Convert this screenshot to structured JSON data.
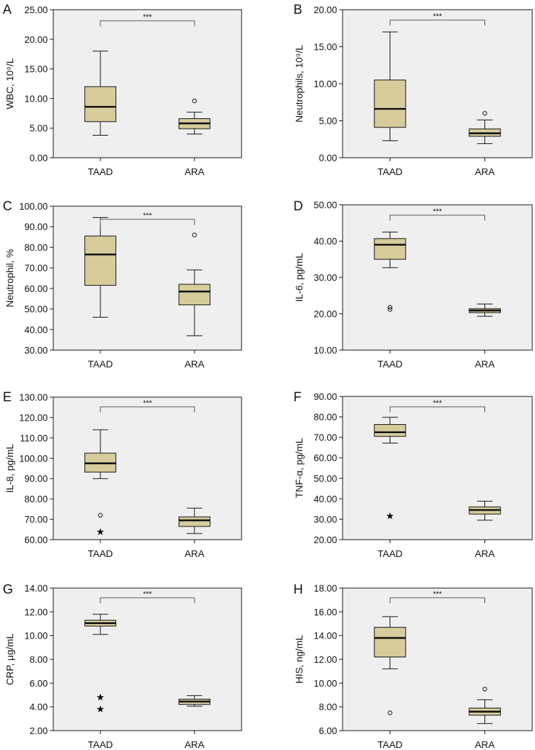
{
  "figure": {
    "box_fill": "#d6cc9c",
    "plot_bg": "#efefef",
    "ink": "#111111"
  },
  "chart_data": [
    {
      "panel": "A",
      "type": "box",
      "ylabel": "WBC, 10⁹/L",
      "ylim": [
        0,
        25
      ],
      "ticks": [
        0,
        5,
        10,
        15,
        20,
        25
      ],
      "tick_labels": [
        "0.00",
        "5.00",
        "10.00",
        "15.00",
        "20.00",
        "25.00"
      ],
      "categories": [
        "TAAD",
        "ARA"
      ],
      "significance": "***",
      "boxes": [
        {
          "category": "TAAD",
          "whisker_low": 3.8,
          "q1": 6.1,
          "median": 8.6,
          "q3": 12.0,
          "whisker_high": 18.0,
          "outliers": [],
          "extremes": []
        },
        {
          "category": "ARA",
          "whisker_low": 4.0,
          "q1": 4.9,
          "median": 5.8,
          "q3": 6.6,
          "whisker_high": 7.7,
          "outliers": [
            9.6
          ],
          "extremes": []
        }
      ]
    },
    {
      "panel": "B",
      "type": "box",
      "ylabel": "Neutrophils, 10⁹/L",
      "ylim": [
        0,
        20
      ],
      "ticks": [
        0,
        5,
        10,
        15,
        20
      ],
      "tick_labels": [
        "0.00",
        "5.00",
        "10.00",
        "15.00",
        "20.00"
      ],
      "categories": [
        "TAAD",
        "ARA"
      ],
      "significance": "***",
      "boxes": [
        {
          "category": "TAAD",
          "whisker_low": 2.3,
          "q1": 4.1,
          "median": 6.6,
          "q3": 10.5,
          "whisker_high": 17.0,
          "outliers": [],
          "extremes": []
        },
        {
          "category": "ARA",
          "whisker_low": 1.9,
          "q1": 2.9,
          "median": 3.3,
          "q3": 3.9,
          "whisker_high": 5.1,
          "outliers": [
            6.0
          ],
          "extremes": []
        }
      ]
    },
    {
      "panel": "C",
      "type": "box",
      "ylabel": "Neutrophil, %",
      "ylim": [
        30,
        100
      ],
      "ticks": [
        30,
        40,
        50,
        60,
        70,
        80,
        90,
        100
      ],
      "tick_labels": [
        "30.00",
        "40.00",
        "50.00",
        "60.00",
        "70.00",
        "80.00",
        "90.00",
        "100.00"
      ],
      "categories": [
        "TAAD",
        "ARA"
      ],
      "significance": "***",
      "boxes": [
        {
          "category": "TAAD",
          "whisker_low": 46.0,
          "q1": 61.5,
          "median": 76.5,
          "q3": 85.5,
          "whisker_high": 94.5,
          "outliers": [],
          "extremes": []
        },
        {
          "category": "ARA",
          "whisker_low": 37.0,
          "q1": 52.0,
          "median": 58.5,
          "q3": 62.0,
          "whisker_high": 69.0,
          "outliers": [
            86.0
          ],
          "extremes": []
        }
      ]
    },
    {
      "panel": "D",
      "type": "box",
      "ylabel": "IL-6, pg/mL",
      "ylim": [
        10,
        50
      ],
      "ticks": [
        10,
        20,
        30,
        40,
        50
      ],
      "tick_labels": [
        "10.00",
        "20.00",
        "30.00",
        "40.00",
        "50.00"
      ],
      "categories": [
        "TAAD",
        "ARA"
      ],
      "significance": "***",
      "boxes": [
        {
          "category": "TAAD",
          "whisker_low": 32.7,
          "q1": 35.0,
          "median": 39.0,
          "q3": 40.7,
          "whisker_high": 42.5,
          "outliers": [
            21.2,
            21.8
          ],
          "extremes": []
        },
        {
          "category": "ARA",
          "whisker_low": 19.3,
          "q1": 20.3,
          "median": 20.9,
          "q3": 21.4,
          "whisker_high": 22.7,
          "outliers": [],
          "extremes": []
        }
      ]
    },
    {
      "panel": "E",
      "type": "box",
      "ylabel": "IL-8, pg/mL",
      "ylim": [
        60,
        130
      ],
      "ticks": [
        60,
        70,
        80,
        90,
        100,
        110,
        120,
        130
      ],
      "tick_labels": [
        "60.00",
        "70.00",
        "80.00",
        "90.00",
        "100.00",
        "110.00",
        "120.00",
        "130.00"
      ],
      "categories": [
        "TAAD",
        "ARA"
      ],
      "significance": "***",
      "boxes": [
        {
          "category": "TAAD",
          "whisker_low": 90.0,
          "q1": 93.2,
          "median": 97.5,
          "q3": 102.5,
          "whisker_high": 114.0,
          "outliers": [
            72.0
          ],
          "extremes": [
            63.8
          ]
        },
        {
          "category": "ARA",
          "whisker_low": 63.0,
          "q1": 66.5,
          "median": 69.5,
          "q3": 71.2,
          "whisker_high": 75.5,
          "outliers": [],
          "extremes": []
        }
      ]
    },
    {
      "panel": "F",
      "type": "box",
      "ylabel": "TNF-α, pg/mL",
      "ylim": [
        20,
        90
      ],
      "ticks": [
        20,
        30,
        40,
        50,
        60,
        70,
        80,
        90
      ],
      "tick_labels": [
        "20.00",
        "30.00",
        "40.00",
        "50.00",
        "60.00",
        "70.00",
        "80.00",
        "90.00"
      ],
      "categories": [
        "TAAD",
        "ARA"
      ],
      "significance": "***",
      "boxes": [
        {
          "category": "TAAD",
          "whisker_low": 67.2,
          "q1": 70.5,
          "median": 72.5,
          "q3": 76.3,
          "whisker_high": 79.8,
          "outliers": [],
          "extremes": [
            31.5
          ]
        },
        {
          "category": "ARA",
          "whisker_low": 29.5,
          "q1": 32.5,
          "median": 34.5,
          "q3": 36.0,
          "whisker_high": 38.8,
          "outliers": [],
          "extremes": []
        }
      ]
    },
    {
      "panel": "G",
      "type": "box",
      "ylabel": "CRP, μg/mL",
      "ylim": [
        2,
        14
      ],
      "ticks": [
        2,
        4,
        6,
        8,
        10,
        12,
        14
      ],
      "tick_labels": [
        "2.00",
        "4.00",
        "6.00",
        "8.00",
        "10.00",
        "12.00",
        "14.00"
      ],
      "categories": [
        "TAAD",
        "ARA"
      ],
      "significance": "***",
      "boxes": [
        {
          "category": "TAAD",
          "whisker_low": 10.1,
          "q1": 10.8,
          "median": 11.05,
          "q3": 11.3,
          "whisker_high": 11.8,
          "outliers": [],
          "extremes": [
            4.8,
            3.8
          ]
        },
        {
          "category": "ARA",
          "whisker_low": 4.05,
          "q1": 4.2,
          "median": 4.45,
          "q3": 4.65,
          "whisker_high": 4.95,
          "outliers": [],
          "extremes": []
        }
      ]
    },
    {
      "panel": "H",
      "type": "box",
      "ylabel": "HIS, ng/mL",
      "ylim": [
        6,
        18
      ],
      "ticks": [
        6,
        8,
        10,
        12,
        14,
        16,
        18
      ],
      "tick_labels": [
        "6.00",
        "8.00",
        "10.00",
        "12.00",
        "14.00",
        "16.00",
        "18.00"
      ],
      "categories": [
        "TAAD",
        "ARA"
      ],
      "significance": "***",
      "boxes": [
        {
          "category": "TAAD",
          "whisker_low": 11.2,
          "q1": 12.2,
          "median": 13.8,
          "q3": 14.7,
          "whisker_high": 15.6,
          "outliers": [
            7.5
          ],
          "extremes": []
        },
        {
          "category": "ARA",
          "whisker_low": 6.6,
          "q1": 7.3,
          "median": 7.6,
          "q3": 7.9,
          "whisker_high": 8.6,
          "outliers": [
            9.5
          ],
          "extremes": []
        }
      ]
    }
  ]
}
